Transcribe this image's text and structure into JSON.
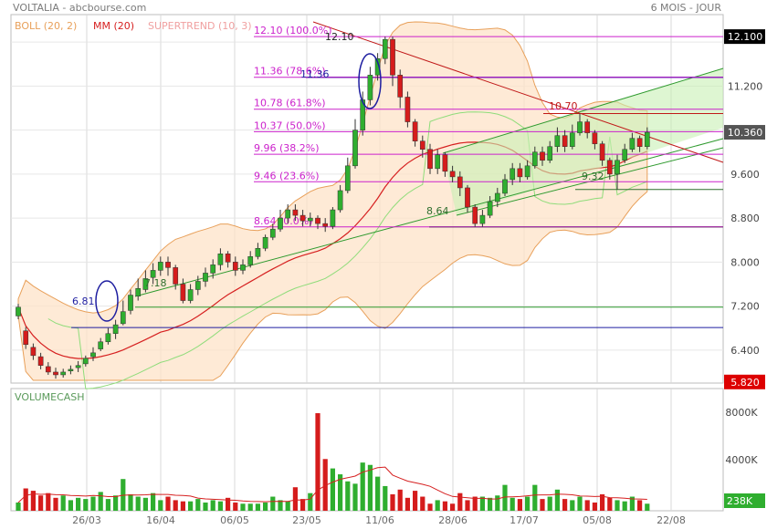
{
  "header": {
    "title": "VOLTALIA - abcbourse.com",
    "period": "6 MOIS - JOUR"
  },
  "legend": [
    {
      "label": "BOLL (20, 2)",
      "color": "#e8a05a"
    },
    {
      "label": "MM (20)",
      "color": "#d62020"
    },
    {
      "label": "SUPERTREND (10, 3)",
      "color": "#f0a0a0"
    }
  ],
  "chart_data": {
    "type": "candlestick",
    "x_ticks": [
      "26/03",
      "16/04",
      "06/05",
      "23/05",
      "11/06",
      "28/06",
      "17/07",
      "05/08",
      "22/08"
    ],
    "price_ylim": [
      5.8,
      12.5
    ],
    "price_ticks": [
      "12.100",
      "11.200",
      "10.360",
      "9.600",
      "8.800",
      "8.000",
      "7.200",
      "6.400",
      "5.820"
    ],
    "current_price": "10.360",
    "highlighted_levels": [
      {
        "value": 12.1,
        "label": "12.100",
        "color": "#000000"
      },
      {
        "value": 10.36,
        "label": "10.360",
        "color": "#555555"
      },
      {
        "value": 5.82,
        "label": "5.820",
        "color": "#dd0000"
      }
    ],
    "fibonacci": [
      {
        "value": 12.1,
        "label": "12.10 (100.0%)"
      },
      {
        "value": 11.36,
        "label": "11.36 (78.6%)"
      },
      {
        "value": 10.78,
        "label": "10.78 (61.8%)"
      },
      {
        "value": 10.37,
        "label": "10.37 (50.0%)"
      },
      {
        "value": 9.96,
        "label": "9.96 (38.2%)"
      },
      {
        "value": 9.46,
        "label": "9.46 (23.6%)"
      },
      {
        "value": 8.64,
        "label": "8.64 (0.0%)"
      }
    ],
    "annotations": [
      "12.10",
      "11.36",
      "10.70",
      "9.32",
      "8.64",
      "7.18",
      "6.81"
    ],
    "horizontal_levels": [
      11.36,
      10.7,
      9.32,
      8.64,
      7.18,
      6.81
    ],
    "volume_label": "VOLUMECASH",
    "volume_ticks": [
      "8000K",
      "4000K",
      "238K"
    ],
    "volume_ylim": [
      0,
      9000
    ],
    "candles": [
      [
        7.02,
        7.18,
        7.24,
        6.96
      ],
      [
        6.75,
        6.5,
        6.82,
        6.42
      ],
      [
        6.45,
        6.3,
        6.52,
        6.22
      ],
      [
        6.28,
        6.12,
        6.35,
        6.05
      ],
      [
        6.1,
        6.0,
        6.18,
        5.95
      ],
      [
        6.0,
        5.95,
        6.08,
        5.88
      ],
      [
        5.95,
        6.0,
        6.06,
        5.9
      ],
      [
        6.02,
        6.05,
        6.12,
        5.96
      ],
      [
        6.08,
        6.12,
        6.2,
        6.0
      ],
      [
        6.15,
        6.25,
        6.3,
        6.1
      ],
      [
        6.28,
        6.35,
        6.45,
        6.2
      ],
      [
        6.42,
        6.55,
        6.62,
        6.38
      ],
      [
        6.55,
        6.7,
        6.8,
        6.5
      ],
      [
        6.7,
        6.86,
        6.95,
        6.6
      ],
      [
        6.88,
        7.1,
        7.3,
        6.85
      ],
      [
        7.12,
        7.4,
        7.5,
        7.05
      ],
      [
        7.38,
        7.52,
        7.7,
        7.3
      ],
      [
        7.5,
        7.7,
        7.85,
        7.45
      ],
      [
        7.72,
        7.85,
        7.98,
        7.6
      ],
      [
        7.85,
        8.0,
        8.1,
        7.75
      ],
      [
        8.0,
        7.9,
        8.1,
        7.75
      ],
      [
        7.9,
        7.6,
        7.95,
        7.5
      ],
      [
        7.6,
        7.3,
        7.7,
        7.25
      ],
      [
        7.3,
        7.5,
        7.6,
        7.25
      ],
      [
        7.5,
        7.65,
        7.75,
        7.4
      ],
      [
        7.65,
        7.8,
        7.9,
        7.55
      ],
      [
        7.8,
        7.95,
        8.05,
        7.7
      ],
      [
        7.95,
        8.15,
        8.25,
        7.85
      ],
      [
        8.15,
        8.0,
        8.2,
        7.9
      ],
      [
        8.0,
        7.85,
        8.1,
        7.75
      ],
      [
        7.85,
        7.95,
        8.05,
        7.78
      ],
      [
        7.95,
        8.1,
        8.2,
        7.9
      ],
      [
        8.1,
        8.25,
        8.35,
        8.05
      ],
      [
        8.25,
        8.45,
        8.5,
        8.2
      ],
      [
        8.45,
        8.6,
        8.7,
        8.4
      ],
      [
        8.6,
        8.8,
        8.95,
        8.55
      ],
      [
        8.8,
        8.95,
        9.05,
        8.7
      ],
      [
        8.95,
        8.85,
        9.05,
        8.75
      ],
      [
        8.85,
        8.75,
        8.95,
        8.65
      ],
      [
        8.75,
        8.8,
        8.9,
        8.65
      ],
      [
        8.8,
        8.7,
        8.85,
        8.6
      ],
      [
        8.7,
        8.65,
        8.8,
        8.55
      ],
      [
        8.65,
        8.95,
        9.0,
        8.6
      ],
      [
        8.95,
        9.3,
        9.4,
        8.9
      ],
      [
        9.3,
        9.75,
        9.9,
        9.25
      ],
      [
        9.75,
        10.4,
        10.6,
        9.7
      ],
      [
        10.4,
        10.95,
        11.1,
        10.3
      ],
      [
        10.95,
        11.4,
        11.55,
        10.85
      ],
      [
        11.4,
        11.7,
        11.8,
        11.3
      ],
      [
        11.7,
        12.05,
        12.1,
        11.6
      ],
      [
        12.05,
        11.4,
        12.1,
        11.2
      ],
      [
        11.4,
        11.0,
        11.5,
        10.8
      ],
      [
        11.0,
        10.55,
        11.1,
        10.45
      ],
      [
        10.55,
        10.2,
        10.6,
        10.1
      ],
      [
        10.2,
        10.05,
        10.3,
        9.9
      ],
      [
        10.05,
        9.7,
        10.15,
        9.6
      ],
      [
        9.7,
        9.95,
        10.05,
        9.6
      ],
      [
        9.95,
        9.65,
        10.0,
        9.55
      ],
      [
        9.65,
        9.55,
        9.75,
        9.45
      ],
      [
        9.55,
        9.35,
        9.65,
        9.2
      ],
      [
        9.35,
        9.0,
        9.4,
        8.9
      ],
      [
        9.0,
        8.7,
        9.05,
        8.64
      ],
      [
        8.7,
        8.85,
        8.95,
        8.64
      ],
      [
        8.85,
        9.1,
        9.2,
        8.8
      ],
      [
        9.1,
        9.25,
        9.35,
        9.0
      ],
      [
        9.25,
        9.5,
        9.6,
        9.2
      ],
      [
        9.5,
        9.7,
        9.8,
        9.4
      ],
      [
        9.7,
        9.55,
        9.8,
        9.45
      ],
      [
        9.55,
        9.75,
        9.85,
        9.5
      ],
      [
        9.75,
        10.0,
        10.1,
        9.7
      ],
      [
        10.0,
        9.85,
        10.1,
        9.75
      ],
      [
        9.85,
        10.1,
        10.2,
        9.8
      ],
      [
        10.1,
        10.3,
        10.45,
        10.0
      ],
      [
        10.3,
        10.1,
        10.4,
        10.0
      ],
      [
        10.1,
        10.35,
        10.5,
        10.05
      ],
      [
        10.35,
        10.55,
        10.7,
        10.3
      ],
      [
        10.55,
        10.35,
        10.6,
        10.25
      ],
      [
        10.35,
        10.15,
        10.4,
        10.05
      ],
      [
        10.15,
        9.85,
        10.2,
        9.75
      ],
      [
        9.85,
        9.6,
        9.9,
        9.5
      ],
      [
        9.6,
        9.85,
        9.95,
        9.32
      ],
      [
        9.85,
        10.05,
        10.15,
        9.8
      ],
      [
        10.05,
        10.25,
        10.35,
        10.0
      ],
      [
        10.25,
        10.1,
        10.3,
        10.0
      ],
      [
        10.1,
        10.36,
        10.45,
        10.05
      ]
    ],
    "volumes": [
      700,
      1900,
      1700,
      1300,
      1500,
      1100,
      1300,
      900,
      1100,
      1000,
      1200,
      1600,
      1000,
      1300,
      2700,
      1400,
      1200,
      1100,
      1500,
      900,
      1200,
      900,
      800,
      800,
      1000,
      700,
      900,
      800,
      1100,
      700,
      600,
      600,
      600,
      700,
      1200,
      900,
      800,
      2000,
      1000,
      1500,
      8300,
      4400,
      3600,
      3100,
      2500,
      2300,
      4100,
      3900,
      2900,
      2100,
      1400,
      1800,
      1100,
      1700,
      1200,
      600,
      900,
      800,
      600,
      1500,
      900,
      1200,
      1200,
      1100,
      1300,
      2200,
      1100,
      1000,
      1200,
      2200,
      1000,
      1200,
      1800,
      1000,
      900,
      1200,
      900,
      700,
      1400,
      1100,
      900,
      800,
      1200,
      900,
      600
    ]
  }
}
